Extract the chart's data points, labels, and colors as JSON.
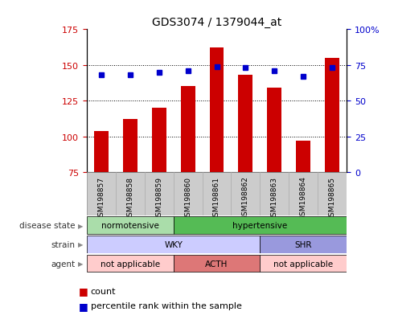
{
  "title": "GDS3074 / 1379044_at",
  "samples": [
    "GSM198857",
    "GSM198858",
    "GSM198859",
    "GSM198860",
    "GSM198861",
    "GSM198862",
    "GSM198863",
    "GSM198864",
    "GSM198865"
  ],
  "counts": [
    104,
    112,
    120,
    135,
    162,
    143,
    134,
    97,
    155
  ],
  "percentile_ranks": [
    68,
    68,
    70,
    71,
    74,
    73,
    71,
    67,
    73
  ],
  "ylim_left": [
    75,
    175
  ],
  "ylim_right": [
    0,
    100
  ],
  "yticks_left": [
    75,
    100,
    125,
    150,
    175
  ],
  "yticks_right": [
    0,
    25,
    50,
    75,
    100
  ],
  "bar_color": "#cc0000",
  "dot_color": "#0000cc",
  "disease_state_groups": [
    {
      "label": "normotensive",
      "start": 0,
      "end": 3,
      "color": "#aaddaa"
    },
    {
      "label": "hypertensive",
      "start": 3,
      "end": 9,
      "color": "#55bb55"
    }
  ],
  "strain_groups": [
    {
      "label": "WKY",
      "start": 0,
      "end": 6,
      "color": "#ccccff"
    },
    {
      "label": "SHR",
      "start": 6,
      "end": 9,
      "color": "#9999dd"
    }
  ],
  "agent_groups": [
    {
      "label": "not applicable",
      "start": 0,
      "end": 3,
      "color": "#ffcccc"
    },
    {
      "label": "ACTH",
      "start": 3,
      "end": 6,
      "color": "#dd7777"
    },
    {
      "label": "not applicable",
      "start": 6,
      "end": 9,
      "color": "#ffcccc"
    }
  ],
  "row_labels": [
    "disease state",
    "strain",
    "agent"
  ],
  "bar_width": 0.5,
  "sample_bg_color": "#cccccc"
}
